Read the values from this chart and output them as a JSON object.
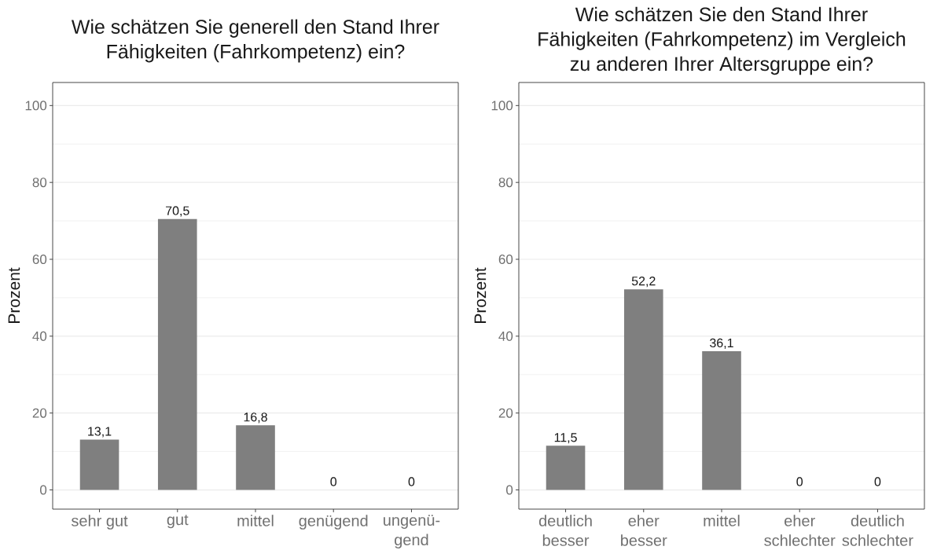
{
  "chart_data": [
    {
      "type": "bar",
      "title": "Wie schätzen Sie generell den Stand Ihrer Fähigkeiten (Fahrkompetenz) ein?",
      "ylabel": "Prozent",
      "categories": [
        "sehr gut",
        "gut",
        "mittel",
        "genügend",
        "ungenü-gend"
      ],
      "values": [
        13.1,
        70.5,
        16.8,
        0,
        0
      ],
      "value_labels": [
        "13,1",
        "70,5",
        "16,8",
        "0",
        "0"
      ],
      "color": "#7f7f7f",
      "ylim": [
        -5,
        106
      ],
      "yticks": [
        0,
        20,
        40,
        60,
        80,
        100
      ],
      "grid": "y"
    },
    {
      "type": "bar",
      "title": "Wie schätzen Sie den Stand Ihrer Fähigkeiten (Fahrkompetenz) im Vergleich zu anderen Ihrer Altersgruppe ein?",
      "ylabel": "Prozent",
      "categories": [
        "deutlich besser",
        "eher besser",
        "mittel",
        "eher schlechter",
        "deutlich schlechter"
      ],
      "values": [
        11.5,
        52.2,
        36.1,
        0,
        0
      ],
      "value_labels": [
        "11,5",
        "52,2",
        "36,1",
        "0",
        "0"
      ],
      "color": "#7f7f7f",
      "ylim": [
        -5,
        106
      ],
      "yticks": [
        0,
        20,
        40,
        60,
        80,
        100
      ],
      "grid": "y"
    }
  ]
}
